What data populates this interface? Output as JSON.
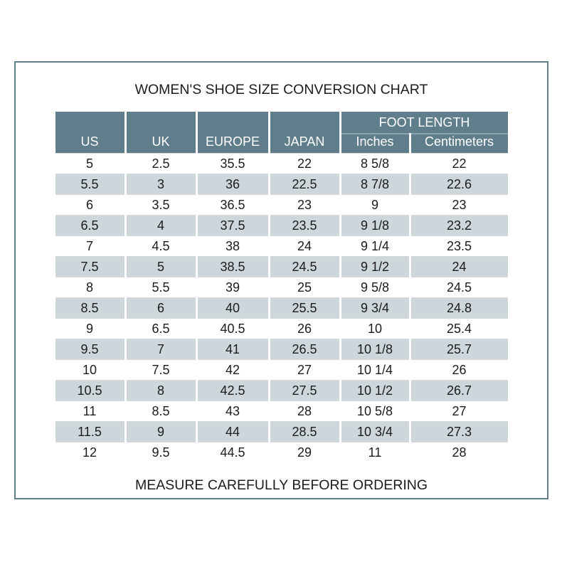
{
  "page": {
    "title": "WOMEN'S SHOE SIZE CONVERSION CHART",
    "footer_note": "MEASURE CAREFULLY BEFORE ORDERING"
  },
  "colors": {
    "header_bg": "#607d8b",
    "header_text": "#ffffff",
    "header_divider": "#8ea5af",
    "row_alt_bg": "#ccd6db",
    "frame_border": "#627e8b",
    "grid_line": "#d9d9d9",
    "text": "#1c1c1c"
  },
  "chart_data": {
    "type": "table",
    "title": "WOMEN'S SHOE SIZE CONVERSION CHART",
    "columns": [
      "US",
      "UK",
      "EUROPE",
      "JAPAN",
      "Inches",
      "Centimeters"
    ],
    "group_header": {
      "label": "FOOT LENGTH",
      "spans_columns": [
        "Inches",
        "Centimeters"
      ]
    },
    "rows": [
      [
        "5",
        "2.5",
        "35.5",
        "22",
        "8 5/8",
        "22"
      ],
      [
        "5.5",
        "3",
        "36",
        "22.5",
        "8 7/8",
        "22.6"
      ],
      [
        "6",
        "3.5",
        "36.5",
        "23",
        "9",
        "23"
      ],
      [
        "6.5",
        "4",
        "37.5",
        "23.5",
        "9 1/8",
        "23.2"
      ],
      [
        "7",
        "4.5",
        "38",
        "24",
        "9 1/4",
        "23.5"
      ],
      [
        "7.5",
        "5",
        "38.5",
        "24.5",
        "9 1/2",
        "24"
      ],
      [
        "8",
        "5.5",
        "39",
        "25",
        "9 5/8",
        "24.5"
      ],
      [
        "8.5",
        "6",
        "40",
        "25.5",
        "9 3/4",
        "24.8"
      ],
      [
        "9",
        "6.5",
        "40.5",
        "26",
        "10",
        "25.4"
      ],
      [
        "9.5",
        "7",
        "41",
        "26.5",
        "10 1/8",
        "25.7"
      ],
      [
        "10",
        "7.5",
        "42",
        "27",
        "10 1/4",
        "26"
      ],
      [
        "10.5",
        "8",
        "42.5",
        "27.5",
        "10 1/2",
        "26.7"
      ],
      [
        "11",
        "8.5",
        "43",
        "28",
        "10 5/8",
        "27"
      ],
      [
        "11.5",
        "9",
        "44",
        "28.5",
        "10 3/4",
        "27.3"
      ],
      [
        "12",
        "9.5",
        "44.5",
        "29",
        "11",
        "28"
      ]
    ],
    "layout_hints": {
      "alternating_row_shading": "even-numbered data rows shaded light blue-gray",
      "first_four_columns_rowspan": 2,
      "footer_note": "MEASURE CAREFULLY BEFORE ORDERING"
    }
  }
}
